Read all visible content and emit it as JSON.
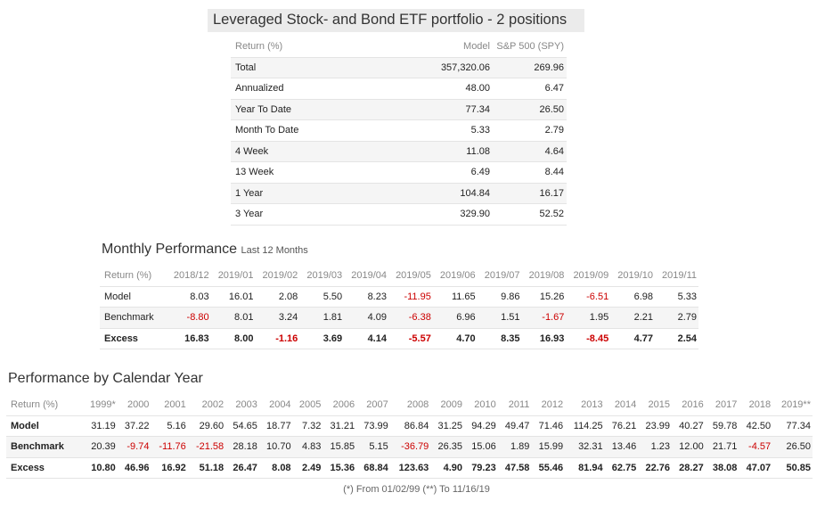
{
  "title": "Leveraged Stock- and Bond ETF portfolio - 2 positions",
  "summary": {
    "headers": [
      "Return (%)",
      "Model",
      "S&P 500 (SPY)"
    ],
    "rows": [
      {
        "label": "Total",
        "model": "357,320.06",
        "spy": "269.96"
      },
      {
        "label": "Annualized",
        "model": "48.00",
        "spy": "6.47"
      },
      {
        "label": "Year To Date",
        "model": "77.34",
        "spy": "26.50"
      },
      {
        "label": "Month To Date",
        "model": "5.33",
        "spy": "2.79"
      },
      {
        "label": "4 Week",
        "model": "11.08",
        "spy": "4.64"
      },
      {
        "label": "13 Week",
        "model": "6.49",
        "spy": "8.44"
      },
      {
        "label": "1 Year",
        "model": "104.84",
        "spy": "16.17"
      },
      {
        "label": "3 Year",
        "model": "329.90",
        "spy": "52.52"
      }
    ]
  },
  "monthly": {
    "title": "Monthly Performance",
    "subtitle": "Last 12 Months",
    "headers": [
      "Return (%)",
      "2018/12",
      "2019/01",
      "2019/02",
      "2019/03",
      "2019/04",
      "2019/05",
      "2019/06",
      "2019/07",
      "2019/08",
      "2019/09",
      "2019/10",
      "2019/11"
    ],
    "rows": [
      {
        "label": "Model",
        "values": [
          "8.03",
          "16.01",
          "2.08",
          "5.50",
          "8.23",
          "-11.95",
          "11.65",
          "9.86",
          "15.26",
          "-6.51",
          "6.98",
          "5.33"
        ]
      },
      {
        "label": "Benchmark",
        "values": [
          "-8.80",
          "8.01",
          "3.24",
          "1.81",
          "4.09",
          "-6.38",
          "6.96",
          "1.51",
          "-1.67",
          "1.95",
          "2.21",
          "2.79"
        ]
      },
      {
        "label": "Excess",
        "values": [
          "16.83",
          "8.00",
          "-1.16",
          "3.69",
          "4.14",
          "-5.57",
          "4.70",
          "8.35",
          "16.93",
          "-8.45",
          "4.77",
          "2.54"
        ]
      }
    ]
  },
  "yearly": {
    "title": "Performance by Calendar Year",
    "headers": [
      "Return (%)",
      "1999*",
      "2000",
      "2001",
      "2002",
      "2003",
      "2004",
      "2005",
      "2006",
      "2007",
      "2008",
      "2009",
      "2010",
      "2011",
      "2012",
      "2013",
      "2014",
      "2015",
      "2016",
      "2017",
      "2018",
      "2019**"
    ],
    "rows": [
      {
        "label": "Model",
        "values": [
          "31.19",
          "37.22",
          "5.16",
          "29.60",
          "54.65",
          "18.77",
          "7.32",
          "31.21",
          "73.99",
          "86.84",
          "31.25",
          "94.29",
          "49.47",
          "71.46",
          "114.25",
          "76.21",
          "23.99",
          "40.27",
          "59.78",
          "42.50",
          "77.34"
        ]
      },
      {
        "label": "Benchmark",
        "values": [
          "20.39",
          "-9.74",
          "-11.76",
          "-21.58",
          "28.18",
          "10.70",
          "4.83",
          "15.85",
          "5.15",
          "-36.79",
          "26.35",
          "15.06",
          "1.89",
          "15.99",
          "32.31",
          "13.46",
          "1.23",
          "12.00",
          "21.71",
          "-4.57",
          "26.50"
        ]
      },
      {
        "label": "Excess",
        "values": [
          "10.80",
          "46.96",
          "16.92",
          "51.18",
          "26.47",
          "8.08",
          "2.49",
          "15.36",
          "68.84",
          "123.63",
          "4.90",
          "79.23",
          "47.58",
          "55.46",
          "81.94",
          "62.75",
          "22.76",
          "28.27",
          "38.08",
          "47.07",
          "50.85"
        ]
      }
    ]
  },
  "footnote": "(*) From 01/02/99  (**) To 11/16/19",
  "colors": {
    "negative": "#cc0000",
    "header_text": "#888888",
    "title_bg": "#ebebeb"
  }
}
